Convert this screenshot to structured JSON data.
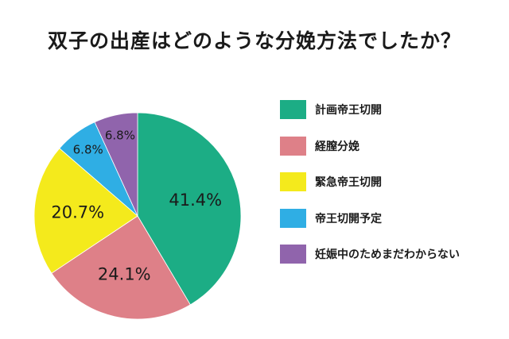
{
  "chart_data": {
    "type": "pie",
    "title": "双子の出産はどのような分娩方法でしたか？",
    "slices": [
      {
        "label": "計画帝王切開",
        "value": 41.4,
        "display": "41.4%",
        "color": "#1cad85"
      },
      {
        "label": "経膣分娩",
        "value": 24.1,
        "display": "24.1%",
        "color": "#de8088"
      },
      {
        "label": "緊急帝王切開",
        "value": 20.7,
        "display": "20.7%",
        "color": "#f4ea1c"
      },
      {
        "label": "帝王切開予定",
        "value": 6.8,
        "display": "6.8%",
        "color": "#2faee4"
      },
      {
        "label": "妊娠中のためまだわからない",
        "value": 6.8,
        "display": "6.8%",
        "color": "#9064ac"
      }
    ],
    "legend_position": "right"
  }
}
